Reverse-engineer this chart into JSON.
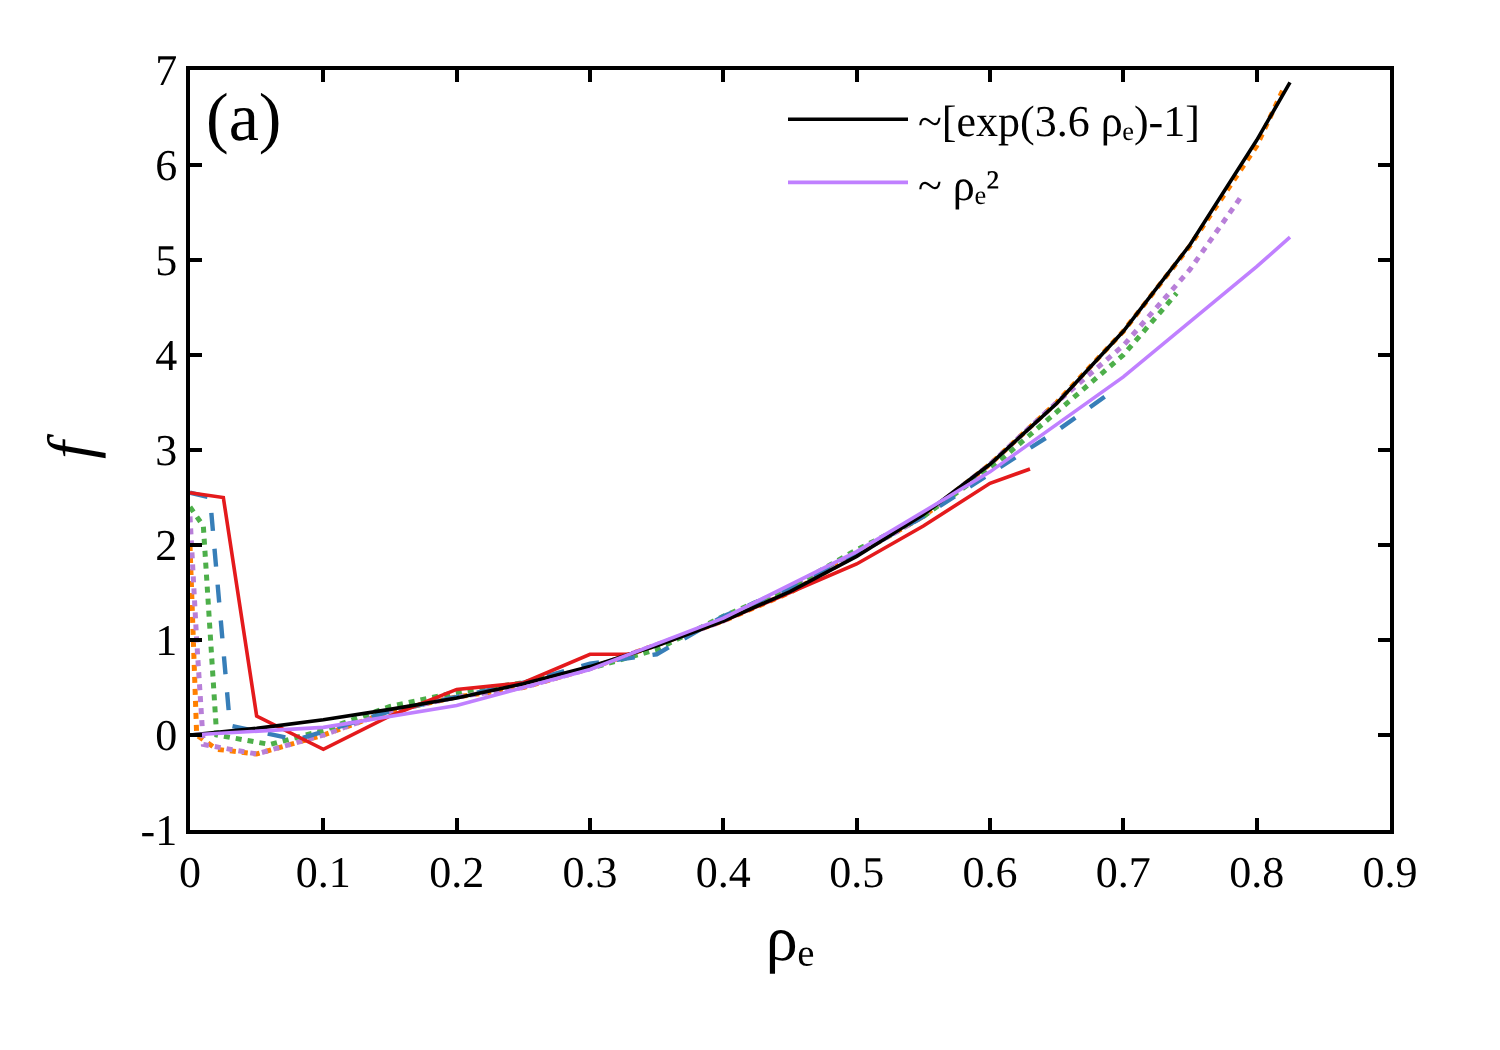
{
  "chart_data": {
    "type": "line",
    "xlabel": "ρₑ",
    "ylabel": "f",
    "annotations": [
      "(a)"
    ],
    "xlim": [
      0,
      0.9
    ],
    "xticks": [
      0,
      0.1,
      0.2,
      0.3,
      0.4,
      0.5,
      0.6,
      0.7,
      0.8,
      0.9
    ],
    "ylim": [
      -1,
      7
    ],
    "yticks": [
      -1,
      0,
      1,
      2,
      3,
      4,
      5,
      6,
      7
    ],
    "legend": "top right",
    "marker": "none",
    "series": [
      {
        "color": "#ff7f00",
        "line_style": "dotted",
        "x": [
          0,
          0.005,
          0.02,
          0.05,
          0.1,
          0.15,
          0.2,
          0.25,
          0.3,
          0.35,
          0.4,
          0.45,
          0.5,
          0.55,
          0.6,
          0.65,
          0.7,
          0.75,
          0.8,
          0.82
        ],
        "values": [
          2.0,
          0.0,
          -0.15,
          -0.2,
          0.0,
          0.25,
          0.4,
          0.5,
          0.7,
          0.95,
          1.2,
          1.5,
          1.9,
          2.3,
          2.85,
          3.5,
          4.25,
          5.15,
          6.2,
          6.8
        ]
      },
      {
        "color": "#b87fd8",
        "line_style": "dotted",
        "x": [
          0,
          0.005,
          0.01,
          0.05,
          0.1,
          0.15,
          0.2,
          0.25,
          0.3,
          0.35,
          0.4,
          0.45,
          0.5,
          0.55,
          0.6,
          0.65,
          0.7,
          0.75,
          0.79
        ],
        "values": [
          2.3,
          1.0,
          -0.1,
          -0.2,
          0.0,
          0.25,
          0.4,
          0.5,
          0.7,
          0.95,
          1.2,
          1.55,
          1.9,
          2.3,
          2.85,
          3.5,
          4.1,
          4.9,
          5.7
        ]
      },
      {
        "color": "#4daf4a",
        "line_style": "dotted",
        "x": [
          0,
          0.01,
          0.02,
          0.06,
          0.1,
          0.15,
          0.2,
          0.25,
          0.3,
          0.35,
          0.4,
          0.45,
          0.5,
          0.55,
          0.6,
          0.65,
          0.7,
          0.74
        ],
        "values": [
          2.4,
          2.2,
          0.0,
          -0.1,
          0.05,
          0.3,
          0.45,
          0.55,
          0.7,
          0.9,
          1.25,
          1.55,
          1.95,
          2.3,
          2.8,
          3.4,
          4.0,
          4.65
        ]
      },
      {
        "color": "#377eb8",
        "line_style": "dashed",
        "x": [
          0,
          0.015,
          0.03,
          0.08,
          0.15,
          0.2,
          0.25,
          0.3,
          0.35,
          0.4,
          0.45,
          0.5,
          0.55,
          0.6,
          0.65,
          0.69
        ],
        "values": [
          2.55,
          2.5,
          0.1,
          -0.05,
          0.25,
          0.4,
          0.55,
          0.75,
          0.85,
          1.25,
          1.55,
          1.9,
          2.3,
          2.75,
          3.2,
          3.6
        ]
      },
      {
        "color": "#e41a1c",
        "line_style": "solid",
        "x": [
          0,
          0.025,
          0.05,
          0.1,
          0.15,
          0.2,
          0.25,
          0.3,
          0.33,
          0.4,
          0.45,
          0.5,
          0.55,
          0.6,
          0.63
        ],
        "values": [
          2.55,
          2.5,
          0.2,
          -0.15,
          0.2,
          0.48,
          0.55,
          0.85,
          0.85,
          1.2,
          1.5,
          1.8,
          2.2,
          2.65,
          2.8
        ]
      },
      {
        "name": "~[exp(3.6 ρₑ)-1]",
        "color": "#000000",
        "line_style": "solid",
        "x": [
          0,
          0.05,
          0.1,
          0.15,
          0.2,
          0.25,
          0.3,
          0.35,
          0.4,
          0.45,
          0.5,
          0.55,
          0.6,
          0.65,
          0.7,
          0.75,
          0.8,
          0.825
        ],
        "values": [
          0,
          0.07,
          0.16,
          0.27,
          0.39,
          0.54,
          0.72,
          0.94,
          1.2,
          1.51,
          1.88,
          2.32,
          2.85,
          3.49,
          4.25,
          5.16,
          6.26,
          6.87
        ]
      },
      {
        "name": "~ ρₑ²",
        "color": "#c080ff",
        "line_style": "solid",
        "x": [
          0,
          0.1,
          0.2,
          0.3,
          0.4,
          0.5,
          0.6,
          0.7,
          0.8,
          0.825
        ],
        "values": [
          0,
          0.08,
          0.31,
          0.69,
          1.23,
          1.93,
          2.77,
          3.77,
          4.93,
          5.24
        ]
      }
    ]
  }
}
